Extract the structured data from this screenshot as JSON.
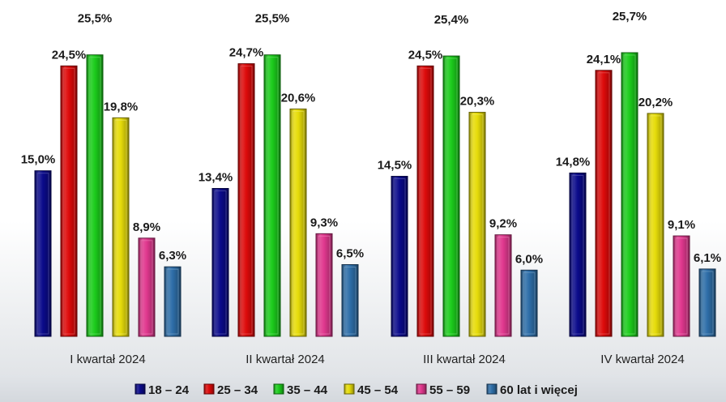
{
  "chart_data": {
    "type": "bar",
    "categories": [
      "I kwartał 2024",
      "II kwartał 2024",
      "III kwartał 2024",
      "IV kwartał 2024"
    ],
    "ylim": [
      0,
      30
    ],
    "grid": false,
    "legend_position": "bottom",
    "series": [
      {
        "name": "18 – 24",
        "color": "#0a0a8a",
        "values": [
          15.0,
          13.4,
          14.5,
          14.8
        ],
        "labels": [
          "15,0%",
          "13,4%",
          "14,5%",
          "14,8%"
        ]
      },
      {
        "name": "25 – 34",
        "color": "#dd0a0a",
        "values": [
          24.5,
          24.7,
          24.5,
          24.1
        ],
        "labels": [
          "24,5%",
          "24,7%",
          "24,5%",
          "24,1%"
        ]
      },
      {
        "name": "35 – 44",
        "color": "#1ccc1c",
        "values": [
          25.5,
          25.5,
          25.4,
          25.7
        ],
        "labels": [
          "25,5%",
          "25,5%",
          "25,4%",
          "25,7%"
        ]
      },
      {
        "name": "45 – 54",
        "color": "#e6dc0a",
        "values": [
          19.8,
          20.6,
          20.3,
          20.2
        ],
        "labels": [
          "19,8%",
          "20,6%",
          "20,3%",
          "20,2%"
        ]
      },
      {
        "name": "55 – 59",
        "color": "#e0388e",
        "values": [
          8.9,
          9.3,
          9.2,
          9.1
        ],
        "labels": [
          "8,9%",
          "9,3%",
          "9,2%",
          "9,1%"
        ]
      },
      {
        "name": "60 lat i więcej",
        "color": "#2e6ea8",
        "values": [
          6.3,
          6.5,
          6.0,
          6.1
        ],
        "labels": [
          "6,3%",
          "6,5%",
          "6,0%",
          "6,1%"
        ]
      }
    ]
  }
}
